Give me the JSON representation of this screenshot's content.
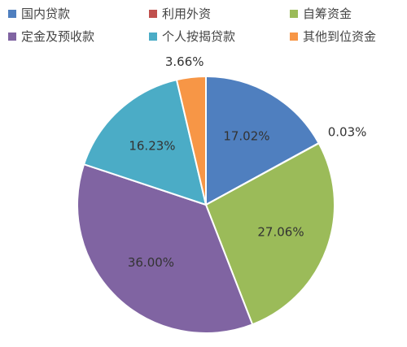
{
  "chart_data": {
    "type": "pie",
    "title": "",
    "legend_position": "top",
    "start_angle_deg": 0,
    "direction": "clockwise",
    "slices": [
      {
        "name": "国内贷款",
        "value": 17.02,
        "label": "17.02%",
        "color": "#4f7fbf"
      },
      {
        "name": "利用外资",
        "value": 0.03,
        "label": "0.03%",
        "color": "#c0504d"
      },
      {
        "name": "自筹资金",
        "value": 27.06,
        "label": "27.06%",
        "color": "#9bbb59"
      },
      {
        "name": "定金及预收款",
        "value": 36.0,
        "label": "36.00%",
        "color": "#8064a2"
      },
      {
        "name": "个人按揭贷款",
        "value": 16.23,
        "label": "16.23%",
        "color": "#4bacc6"
      },
      {
        "name": "其他到位资金",
        "value": 3.66,
        "label": "3.66%",
        "color": "#f79646"
      }
    ]
  }
}
